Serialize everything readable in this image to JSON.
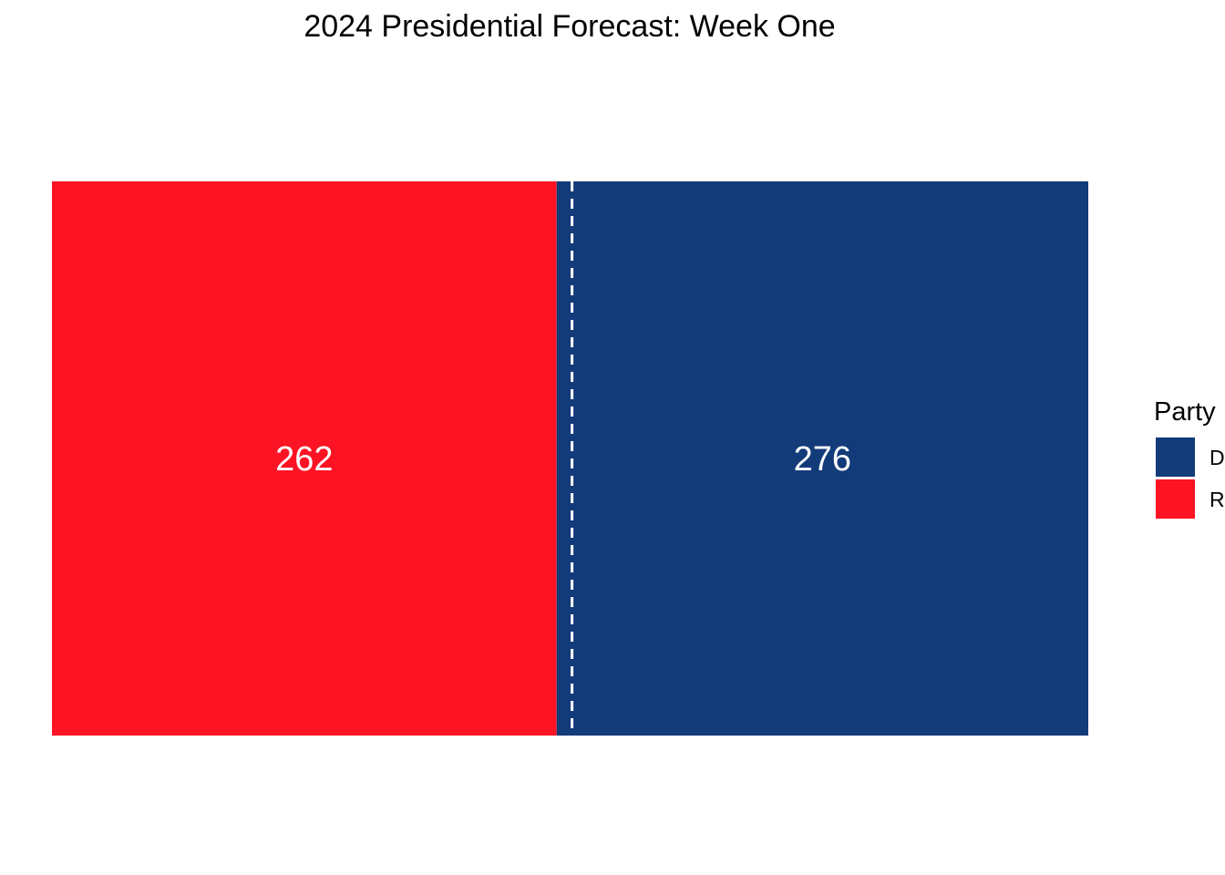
{
  "chart_data": {
    "type": "bar",
    "orientation": "horizontal-stacked",
    "title": "2024 Presidential Forecast: Week One",
    "series": [
      {
        "party": "R",
        "value": 262,
        "color": "#FC1424"
      },
      {
        "party": "D",
        "value": 276,
        "color": "#133B7A"
      }
    ],
    "reference_line": {
      "value": 270,
      "style": "dashed",
      "color": "#ffffff"
    },
    "xlim": [
      0,
      538
    ],
    "grid": false,
    "axes_visible": false,
    "legend": {
      "title": "Party",
      "placement": "right",
      "entries": [
        {
          "label": "D",
          "color": "#133B7A"
        },
        {
          "label": "R",
          "color": "#FC1424"
        }
      ]
    }
  }
}
